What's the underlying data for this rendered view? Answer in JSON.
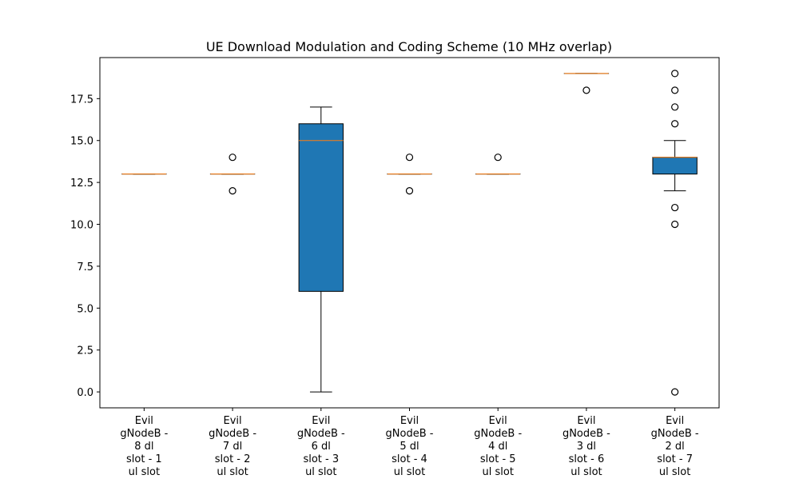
{
  "chart_data": {
    "type": "box",
    "title": "UE Download Modulation and Coding Scheme (10 MHz overlap)",
    "xlabel": "",
    "ylabel": "",
    "ylim": [
      -0.95,
      19.95
    ],
    "yticks": [
      "0.0",
      "2.5",
      "5.0",
      "7.5",
      "10.0",
      "12.5",
      "15.0",
      "17.5"
    ],
    "ytick_values": [
      0,
      2.5,
      5,
      7.5,
      10,
      12.5,
      15,
      17.5
    ],
    "grid": false,
    "box_color": "#1f77b4",
    "median_color": "#ff7f0e",
    "categories": [
      [
        "Evil",
        "gNodeB -",
        "8 dl",
        "slot - 1",
        "ul slot"
      ],
      [
        "Evil",
        "gNodeB -",
        "7 dl",
        "slot - 2",
        "ul slot"
      ],
      [
        "Evil",
        "gNodeB -",
        "6 dl",
        "slot - 3",
        "ul slot"
      ],
      [
        "Evil",
        "gNodeB -",
        "5 dl",
        "slot - 4",
        "ul slot"
      ],
      [
        "Evil",
        "gNodeB -",
        "4 dl",
        "slot - 5",
        "ul slot"
      ],
      [
        "Evil",
        "gNodeB -",
        "3 dl",
        "slot - 6",
        "ul slot"
      ],
      [
        "Evil",
        "gNodeB -",
        "2 dl",
        "slot - 7",
        "ul slot"
      ]
    ],
    "boxes": [
      {
        "q1": 13,
        "median": 13,
        "q3": 13,
        "whisker_low": 13,
        "whisker_high": 13,
        "outliers": []
      },
      {
        "q1": 13,
        "median": 13,
        "q3": 13,
        "whisker_low": 13,
        "whisker_high": 13,
        "outliers": [
          12,
          14
        ]
      },
      {
        "q1": 6,
        "median": 15,
        "q3": 16,
        "whisker_low": 0,
        "whisker_high": 17,
        "outliers": []
      },
      {
        "q1": 13,
        "median": 13,
        "q3": 13,
        "whisker_low": 13,
        "whisker_high": 13,
        "outliers": [
          12,
          14
        ]
      },
      {
        "q1": 13,
        "median": 13,
        "q3": 13,
        "whisker_low": 13,
        "whisker_high": 13,
        "outliers": [
          14
        ]
      },
      {
        "q1": 19,
        "median": 19,
        "q3": 19,
        "whisker_low": 19,
        "whisker_high": 19,
        "outliers": [
          18
        ]
      },
      {
        "q1": 13,
        "median": 14,
        "q3": 14,
        "whisker_low": 12,
        "whisker_high": 15,
        "outliers": [
          0,
          10,
          11,
          16,
          17,
          18,
          19
        ]
      }
    ]
  }
}
